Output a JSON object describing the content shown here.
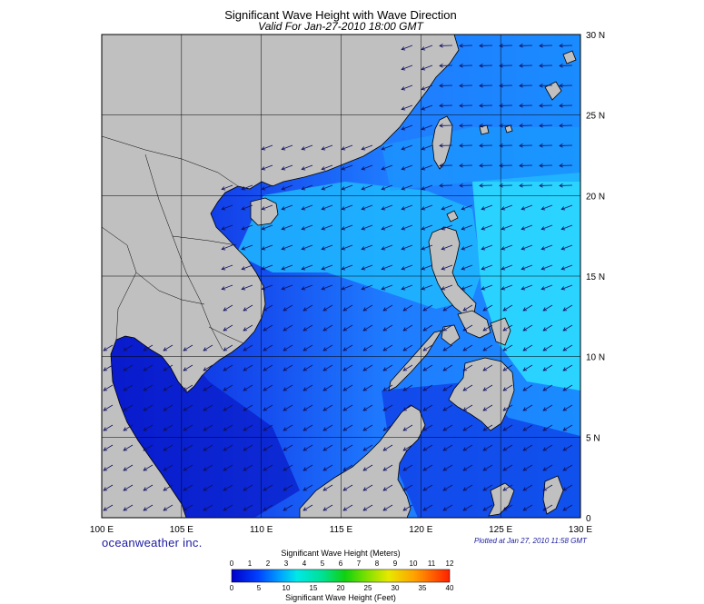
{
  "header": {
    "title": "Significant Wave Height with Wave Direction",
    "subtitle": "Valid For Jan-27-2010 18:00 GMT"
  },
  "axes": {
    "longitude_labels": [
      "100 E",
      "105 E",
      "110 E",
      "115 E",
      "120 E",
      "125 E",
      "130 E"
    ],
    "latitude_labels": [
      "0",
      "5 N",
      "10 N",
      "15 N",
      "20 N",
      "25 N",
      "30 N"
    ],
    "lon_range": [
      100,
      130
    ],
    "lat_range": [
      0,
      30
    ]
  },
  "footer": {
    "brand": "oceanweather inc.",
    "plotted": "Plotted at Jan 27, 2010 11:58 GMT"
  },
  "colorbar": {
    "meters_title": "Significant Wave Height (Meters)",
    "feet_title": "Significant Wave Height (Feet)",
    "meters_ticks": [
      "0",
      "1",
      "2",
      "3",
      "4",
      "5",
      "6",
      "7",
      "8",
      "9",
      "10",
      "11",
      "12"
    ],
    "feet_ticks": [
      "0",
      "5",
      "10",
      "15",
      "20",
      "25",
      "30",
      "35",
      "40"
    ]
  },
  "colors": {
    "land": "#c0c0c0",
    "ocean_low": "#0000cc",
    "ocean_mid": "#1e6cff",
    "ocean_high": "#22e0ff"
  }
}
